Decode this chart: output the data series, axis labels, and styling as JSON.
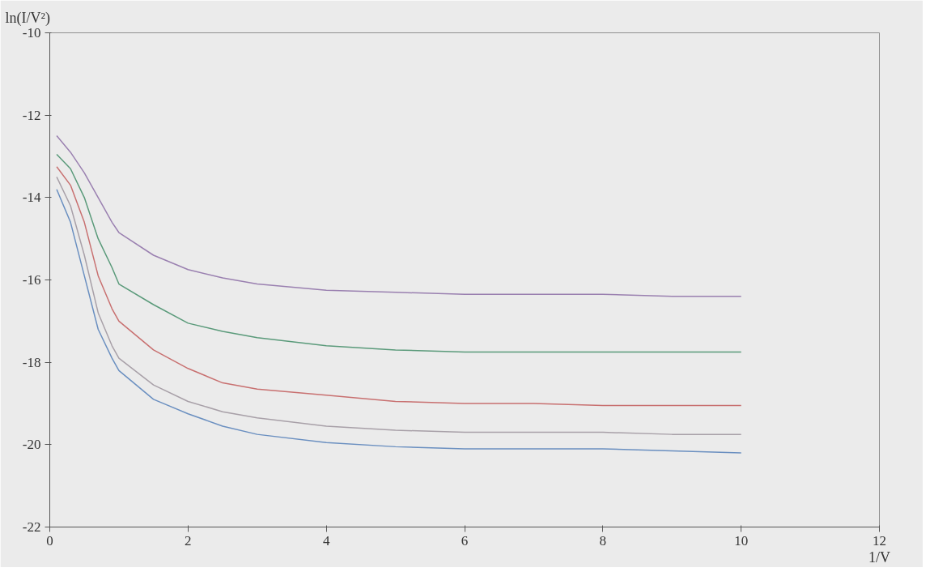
{
  "chart_data": {
    "type": "line",
    "ylabel": "ln(I/V²)",
    "xlabel": "1/V",
    "xlim": [
      0,
      12
    ],
    "ylim": [
      -22,
      -10
    ],
    "xticks": [
      0,
      2,
      4,
      6,
      8,
      10,
      12
    ],
    "yticks": [
      -22,
      -20,
      -18,
      -16,
      -14,
      -12,
      -10
    ],
    "x": [
      0.1,
      0.3,
      0.5,
      0.7,
      0.9,
      1.0,
      1.5,
      2,
      2.5,
      3,
      4,
      5,
      6,
      7,
      8,
      9,
      10
    ],
    "grid": false,
    "marker": "none",
    "line_style": "solid",
    "series": [
      {
        "color": "#9a80b0",
        "values": [
          -12.5,
          -12.9,
          -13.4,
          -14.0,
          -14.6,
          -14.85,
          -15.4,
          -15.75,
          -15.95,
          -16.1,
          -16.25,
          -16.3,
          -16.35,
          -16.35,
          -16.35,
          -16.4,
          -16.4
        ]
      },
      {
        "color": "#5a9a7a",
        "values": [
          -12.95,
          -13.3,
          -14.0,
          -15.0,
          -15.7,
          -16.1,
          -16.6,
          -17.05,
          -17.25,
          -17.4,
          -17.6,
          -17.7,
          -17.75,
          -17.75,
          -17.75,
          -17.75,
          -17.75
        ]
      },
      {
        "color": "#c87070",
        "values": [
          -13.25,
          -13.7,
          -14.6,
          -15.9,
          -16.7,
          -17.0,
          -17.7,
          -18.15,
          -18.5,
          -18.65,
          -18.8,
          -18.95,
          -19.0,
          -19.0,
          -19.05,
          -19.05,
          -19.05
        ]
      },
      {
        "color": "#a8a0a8",
        "values": [
          -13.5,
          -14.2,
          -15.4,
          -16.8,
          -17.6,
          -17.9,
          -18.55,
          -18.95,
          -19.2,
          -19.35,
          -19.55,
          -19.65,
          -19.7,
          -19.7,
          -19.7,
          -19.75,
          -19.75
        ]
      },
      {
        "color": "#6a8fc0",
        "values": [
          -13.8,
          -14.6,
          -15.9,
          -17.2,
          -17.9,
          -18.2,
          -18.9,
          -19.25,
          -19.55,
          -19.75,
          -19.95,
          -20.05,
          -20.1,
          -20.1,
          -20.1,
          -20.15,
          -20.2
        ]
      }
    ]
  }
}
